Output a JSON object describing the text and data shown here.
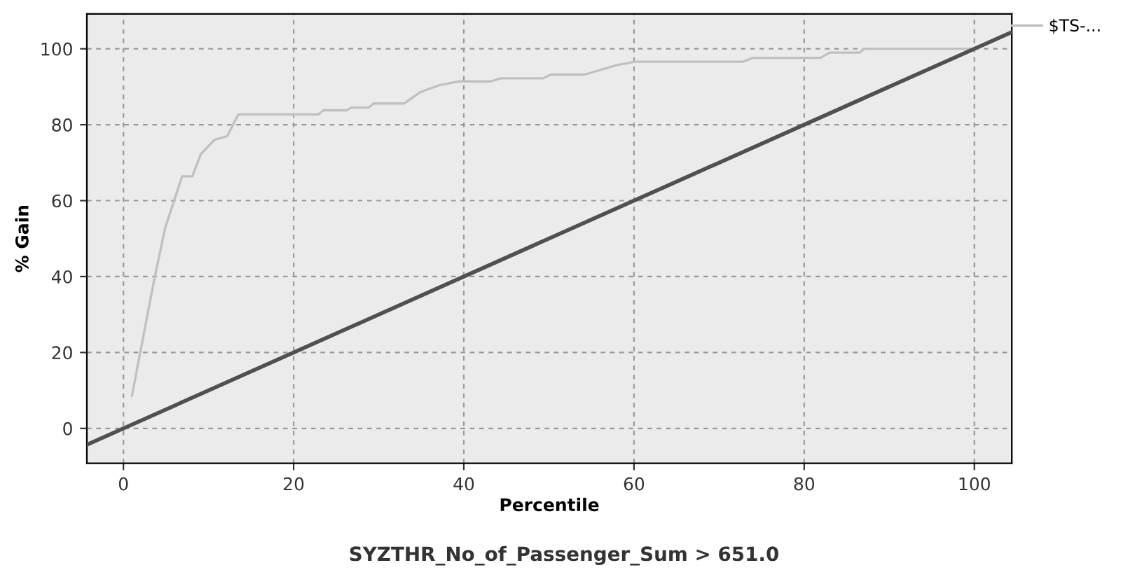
{
  "chart_data": {
    "type": "line",
    "xlabel": "Percentile",
    "ylabel": "% Gain",
    "series": [
      {
        "name": "$TS-...",
        "color": "#c0c0c0",
        "x": [
          1,
          3.6,
          4.9,
          6.9,
          8.1,
          9.1,
          10.7,
          12.2,
          13.5,
          22.9,
          23.5,
          26.2,
          26.8,
          28.8,
          29.4,
          33,
          34.9,
          37.1,
          39.4,
          43.2,
          44.3,
          49.3,
          50.2,
          54.2,
          58,
          60.1,
          72.8,
          74,
          81.9,
          83,
          86.5,
          87.1,
          100
        ],
        "values": [
          8.6,
          39,
          52.8,
          66.4,
          66.4,
          72.3,
          76,
          77,
          82.7,
          82.7,
          83.8,
          83.8,
          84.5,
          84.5,
          85.6,
          85.6,
          88.6,
          90.4,
          91.4,
          91.4,
          92.2,
          92.2,
          93.2,
          93.2,
          95.7,
          96.6,
          96.6,
          97.6,
          97.6,
          99,
          99,
          100,
          100
        ]
      },
      {
        "color": "#505050",
        "x": [
          -4.3,
          104.4
        ],
        "values": [
          -4.3,
          104.4
        ]
      }
    ],
    "xlim": [
      -4.3,
      104.4
    ],
    "ylim": [
      -9.2,
      109.2
    ],
    "xticks": [
      0,
      20,
      40,
      60,
      80,
      100
    ],
    "yticks": [
      0,
      20,
      40,
      60,
      80,
      100
    ],
    "grid": true,
    "legend": "top right",
    "marker": "none",
    "line_style": "solid",
    "annotations": [
      "SYZTHR_No_of_Passenger_Sum > 651.0"
    ]
  }
}
